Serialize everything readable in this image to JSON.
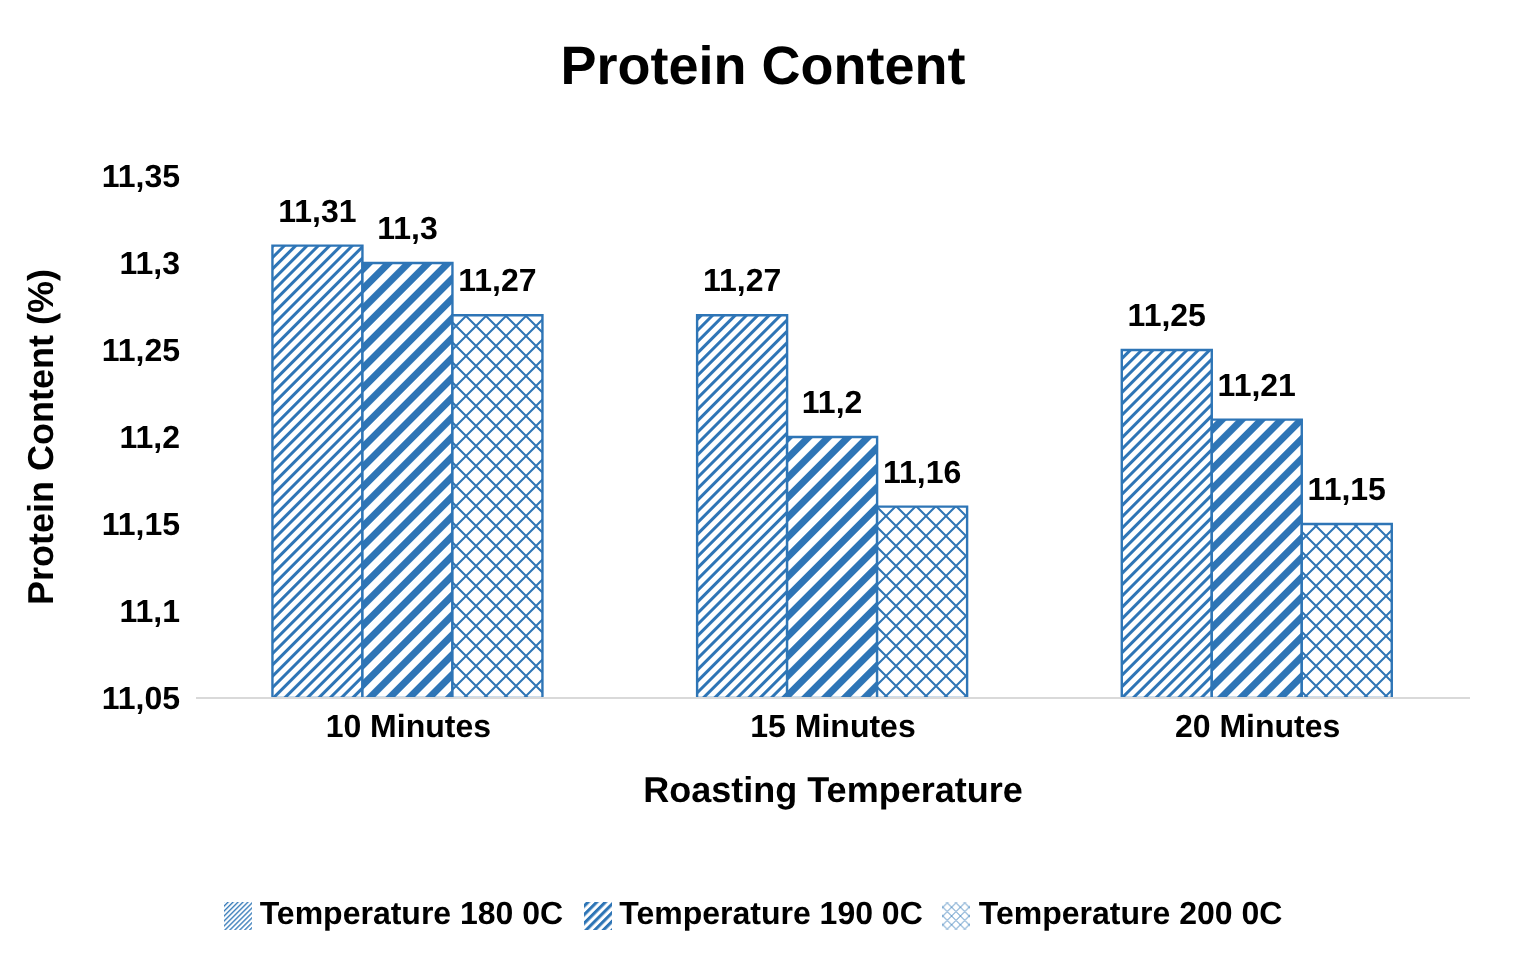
{
  "chart_data": {
    "type": "bar",
    "title": "Protein Content",
    "xlabel": "Roasting Temperature",
    "ylabel": "Protein Content  (%)",
    "categories": [
      "10 Minutes",
      "15 Minutes",
      "20 Minutes"
    ],
    "series": [
      {
        "name": "Temperature 180 0C",
        "color": "#2e75b6",
        "values": [
          11.31,
          11.27,
          11.25
        ],
        "value_labels": [
          "11,31",
          "11,27",
          "11,25"
        ]
      },
      {
        "name": "Temperature 190 0C",
        "color": "#2e75b6",
        "values": [
          11.3,
          11.2,
          11.21
        ],
        "value_labels": [
          "11,3",
          "11,2",
          "11,21"
        ]
      },
      {
        "name": "Temperature 200 0C",
        "color": "#2e75b6",
        "values": [
          11.27,
          11.16,
          11.15
        ],
        "value_labels": [
          "11,27",
          "11,16",
          "11,15"
        ]
      }
    ],
    "ylim": [
      11.05,
      11.35
    ],
    "yticks": [
      {
        "value": 11.05,
        "label": "11,05"
      },
      {
        "value": 11.1,
        "label": "11,1"
      },
      {
        "value": 11.15,
        "label": "11,15"
      },
      {
        "value": 11.2,
        "label": "11,2"
      },
      {
        "value": 11.25,
        "label": "11,25"
      },
      {
        "value": 11.3,
        "label": "11,3"
      },
      {
        "value": 11.35,
        "label": "11,35"
      }
    ],
    "grid": false,
    "legend": "bottom"
  }
}
